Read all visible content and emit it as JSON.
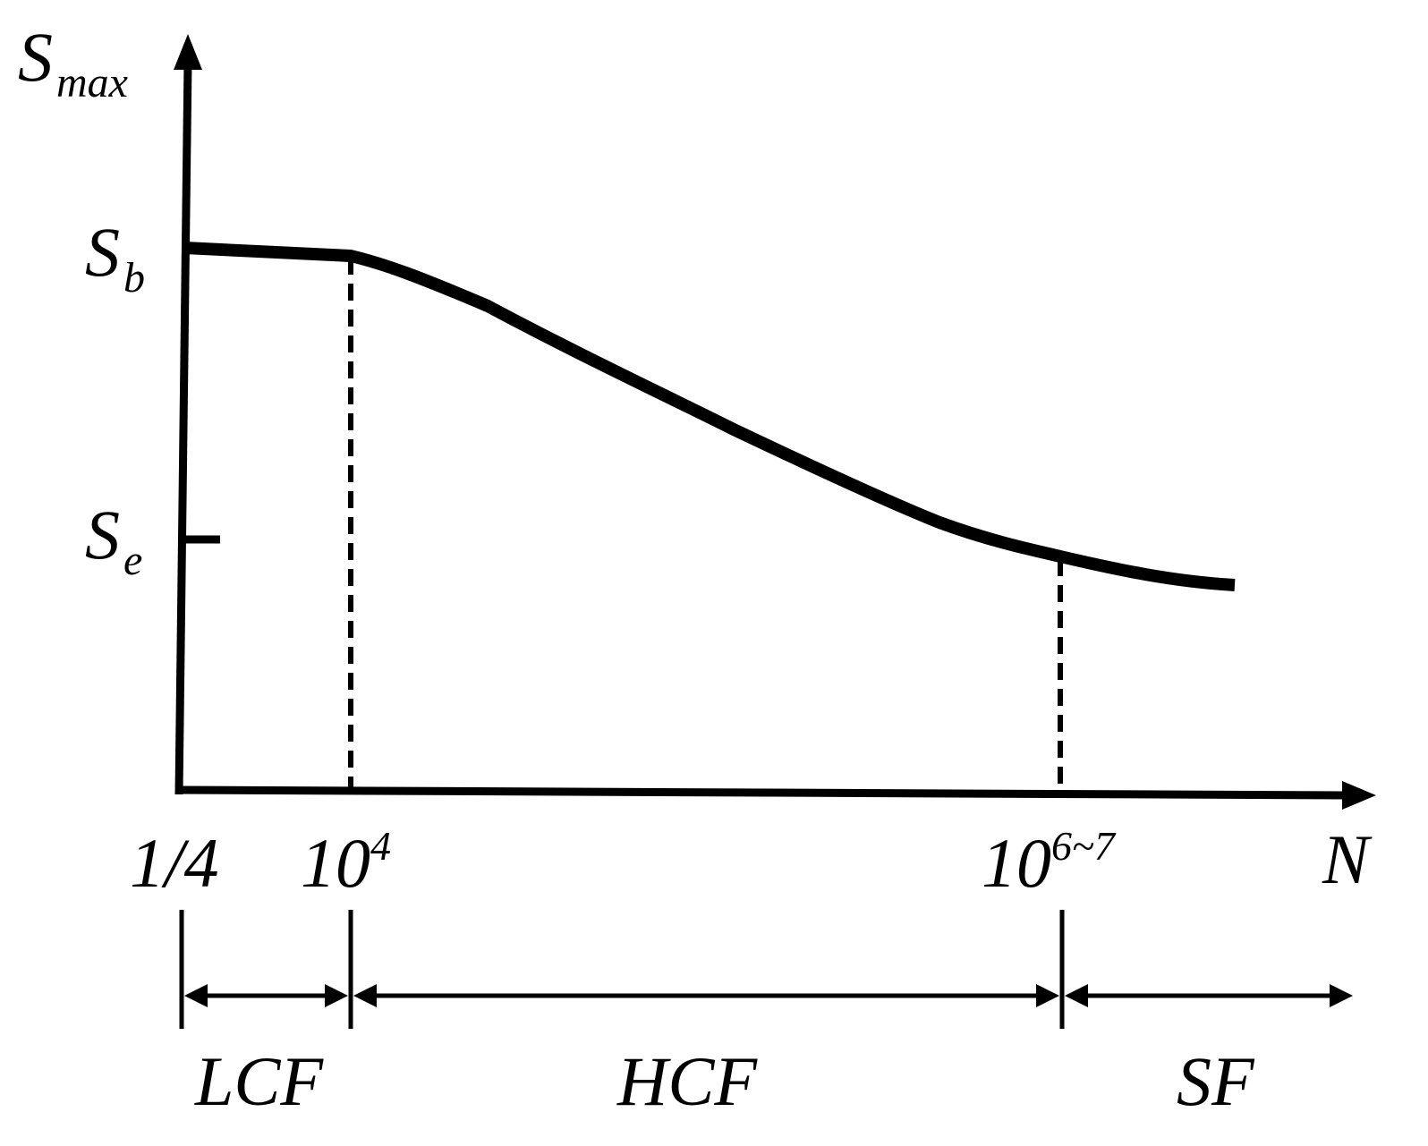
{
  "axes": {
    "y_label": {
      "main": "S",
      "sub": "max"
    },
    "x_label": "N"
  },
  "y_ticks": [
    {
      "main": "S",
      "sub": "b"
    },
    {
      "main": "S",
      "sub": "e"
    }
  ],
  "x_ticks": [
    {
      "base": "1/4",
      "exp": ""
    },
    {
      "base": "10",
      "exp": "4"
    },
    {
      "base": "10",
      "exp": "6~7"
    }
  ],
  "regions": [
    "LCF",
    "HCF",
    "SF"
  ],
  "colors": {
    "ink": "#000000",
    "background": "#ffffff"
  }
}
